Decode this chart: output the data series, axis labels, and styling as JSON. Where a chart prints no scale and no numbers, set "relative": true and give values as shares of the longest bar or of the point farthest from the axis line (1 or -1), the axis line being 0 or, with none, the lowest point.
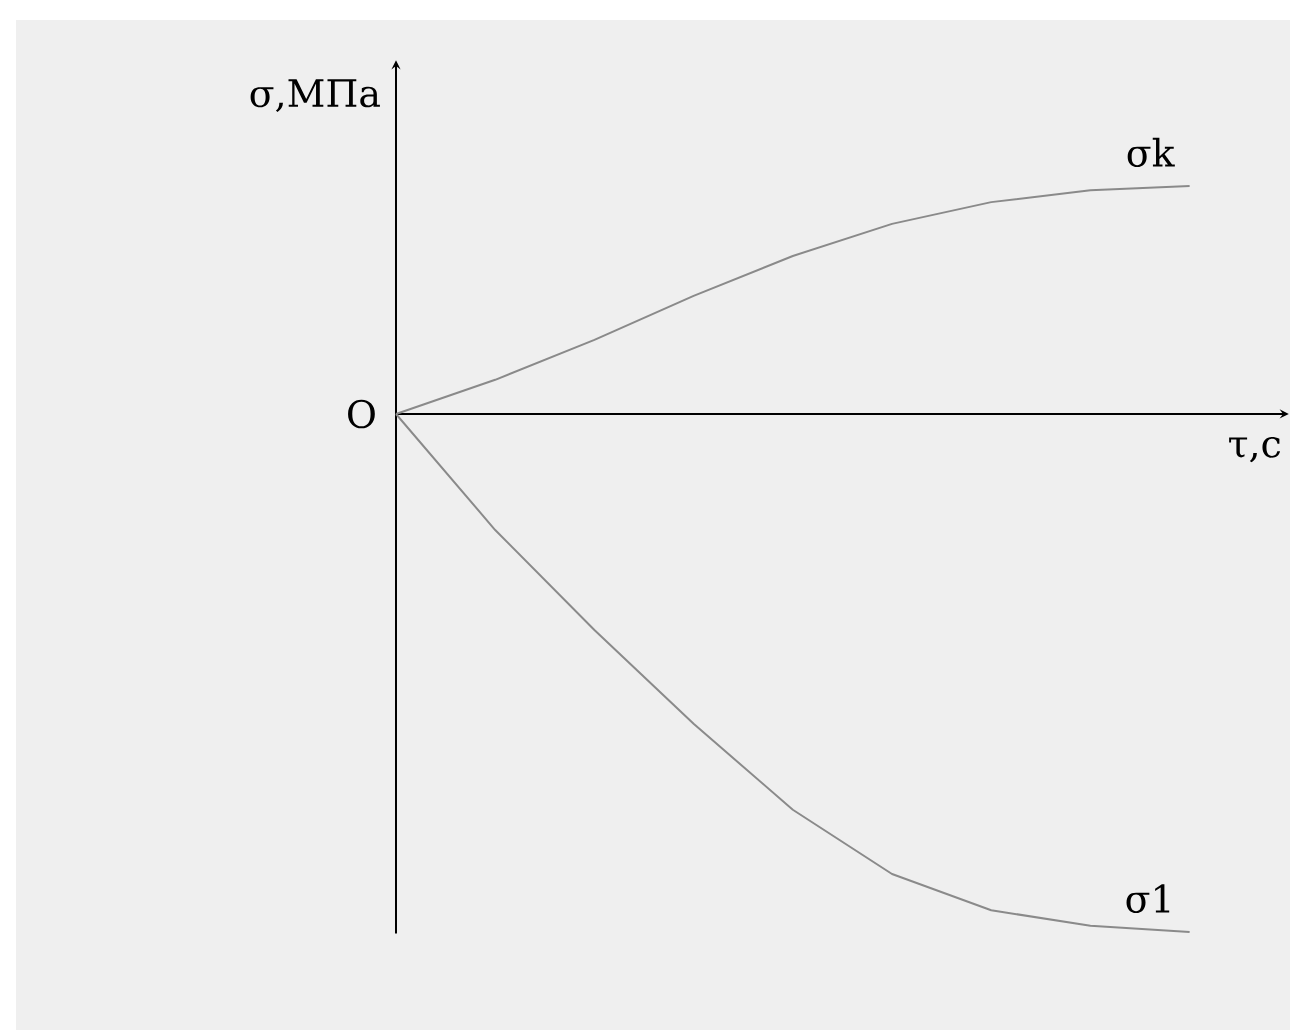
{
  "chart_data": {
    "type": "line",
    "relative": true,
    "xlabel": "τ,с",
    "ylabel": "σ,МПа",
    "annotations": [
      "O"
    ],
    "marker": "none",
    "categories": [
      null,
      null,
      null,
      null,
      null,
      null,
      null,
      null,
      null
    ],
    "series": [
      {
        "name": "σk",
        "color": "#8a8a8a",
        "values": [
          0,
          0.066,
          0.143,
          0.228,
          0.305,
          0.367,
          0.409,
          0.432,
          0.44
        ]
      },
      {
        "name": "σ1",
        "color": "#8a8a8a",
        "values": [
          0,
          -0.224,
          -0.417,
          -0.598,
          -0.764,
          -0.888,
          -0.958,
          -0.988,
          -1
        ]
      }
    ]
  }
}
